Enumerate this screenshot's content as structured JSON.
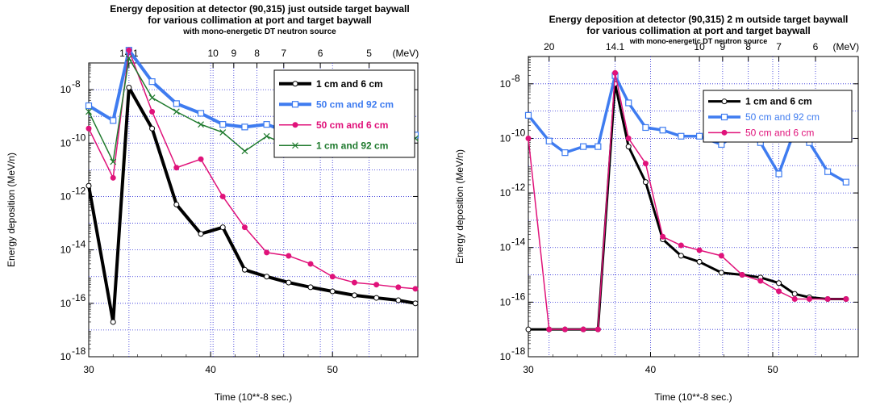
{
  "chart_data": [
    {
      "type": "line",
      "title": "Energy deposition at detector (90,315) just outside target baywall",
      "subtitle": "for various collimation at port and target baywall",
      "subtitle2": "with mono-energetic DT neutron source",
      "xlabel": "Time (10**-8 sec.)",
      "ylabel": "Energy deposition (MeV/n)",
      "xlim": [
        30,
        57
      ],
      "ylim_log10": [
        -18,
        -7
      ],
      "x_ticks": [
        "30",
        "40",
        "50"
      ],
      "x_tick_values": [
        30,
        40,
        50
      ],
      "y_ticks": [
        "-18",
        "-16",
        "-14",
        "-12",
        "-10",
        "-8"
      ],
      "y_tick_values": [
        -18,
        -16,
        -14,
        -12,
        -10,
        -8
      ],
      "top_axis_labels": [
        "14.1",
        "10",
        "9",
        "8",
        "7",
        "6",
        "5",
        "(MeV)"
      ],
      "top_axis_positions": [
        33.3,
        40.2,
        41.9,
        43.8,
        46.0,
        49.0,
        53.0,
        56.0
      ],
      "grid": true,
      "legend_position": "top-right",
      "series": [
        {
          "name": "1 cm and 6 cm",
          "color": "#000000",
          "width": 4,
          "marker": "circle",
          "x": [
            30,
            32,
            33.3,
            35.2,
            37.2,
            39.2,
            41.0,
            42.8,
            44.6,
            46.4,
            48.2,
            50.0,
            51.8,
            53.6,
            55.4,
            56.8
          ],
          "y": [
            2.5e-12,
            2e-17,
            1.2e-08,
            3.5e-10,
            5e-13,
            4e-14,
            7e-14,
            1.8e-15,
            1e-15,
            6e-16,
            4e-16,
            2.8e-16,
            2e-16,
            1.6e-16,
            1.3e-16,
            1e-16
          ]
        },
        {
          "name": "50 cm and 92 cm",
          "color": "#3f7cf0",
          "width": 4,
          "marker": "square",
          "x": [
            30,
            32,
            33.3,
            35.2,
            37.2,
            39.2,
            41.0,
            42.8,
            44.6,
            46.4,
            48.2,
            50.0,
            51.8,
            53.6,
            55.4,
            56.8
          ],
          "y": [
            2.5e-09,
            7e-10,
            3e-07,
            2e-08,
            3e-09,
            1.3e-09,
            5e-10,
            4e-10,
            5e-10,
            2.5e-10,
            2e-10,
            2.2e-10,
            3e-10,
            1.3e-10,
            2.5e-10,
            2e-10
          ]
        },
        {
          "name": "50 cm and 6 cm",
          "color": "#e0127a",
          "width": 1.5,
          "marker": "dot",
          "x": [
            30,
            32,
            33.3,
            35.2,
            37.2,
            39.2,
            41.0,
            42.8,
            44.6,
            46.4,
            48.2,
            50.0,
            51.8,
            53.6,
            55.4,
            56.8
          ],
          "y": [
            3.5e-10,
            5e-12,
            3e-07,
            1.5e-09,
            1.2e-11,
            2.5e-11,
            1e-12,
            7e-14,
            8e-15,
            6e-15,
            3e-15,
            1e-15,
            6e-16,
            5e-16,
            4e-16,
            3.5e-16
          ]
        },
        {
          "name": "1 cm and 92 cm",
          "color": "#1f7a2e",
          "width": 1.5,
          "marker": "x",
          "x": [
            30,
            32,
            33.3,
            35.2,
            37.2,
            39.2,
            41.0,
            42.8,
            44.6,
            46.4,
            48.2,
            50.0,
            51.8,
            53.6,
            55.4,
            56.8
          ],
          "y": [
            1.5e-09,
            2e-11,
            1.5e-07,
            5e-09,
            1.5e-09,
            5e-10,
            2.5e-10,
            5e-11,
            1.8e-10,
            8e-11,
            7e-11,
            1.3e-10,
            2e-10,
            1.8e-10,
            3e-10,
            1.5e-10
          ]
        }
      ]
    },
    {
      "type": "line",
      "title": "Energy deposition at detector (90,315) 2 m outside target baywall",
      "subtitle": "for various collimation at port and target baywall",
      "subtitle2": "with mono-energetic DT neutron source",
      "xlabel": "Time (10**-8 sec.)",
      "ylabel": "Energy deposition (MeV/n)",
      "xlim": [
        30,
        57
      ],
      "ylim_log10": [
        -18,
        -7
      ],
      "x_ticks": [
        "30",
        "40",
        "50"
      ],
      "x_tick_values": [
        30,
        40,
        50
      ],
      "y_ticks": [
        "-18",
        "-16",
        "-14",
        "-12",
        "-10",
        "-8"
      ],
      "y_tick_values": [
        -18,
        -16,
        -14,
        -12,
        -10,
        -8
      ],
      "top_axis_labels": [
        "20",
        "14.1",
        "10",
        "9",
        "8",
        "7",
        "6",
        "(MeV)"
      ],
      "top_axis_positions": [
        31.7,
        37.1,
        44.0,
        45.9,
        48.0,
        50.5,
        53.5,
        56.0
      ],
      "grid": true,
      "legend_position": "top-right",
      "series": [
        {
          "name": "1 cm and 6 cm",
          "color": "#000000",
          "width": 3,
          "marker": "circle",
          "x": [
            30,
            31.7,
            33.0,
            34.5,
            35.7,
            37.1,
            38.2,
            39.6,
            41.0,
            42.5,
            44.0,
            45.8,
            47.5,
            49.0,
            50.5,
            51.8,
            53.0,
            54.5,
            56.0
          ],
          "y": [
            1e-17,
            1e-17,
            1e-17,
            1e-17,
            1e-17,
            1e-08,
            5e-11,
            2.5e-12,
            2e-14,
            5e-15,
            3e-15,
            1.2e-15,
            1e-15,
            8e-16,
            5e-16,
            2e-16,
            1.5e-16,
            1.3e-16,
            1.3e-16
          ]
        },
        {
          "name": "50 cm and 92 cm",
          "color": "#3f7cf0",
          "width": 3.5,
          "marker": "square",
          "x": [
            30,
            31.7,
            33.0,
            34.5,
            35.7,
            37.1,
            38.2,
            39.6,
            41.0,
            42.5,
            44.0,
            45.8,
            47.5,
            49.0,
            50.5,
            51.8,
            53.0,
            54.5,
            56.0
          ],
          "y": [
            7e-10,
            8e-11,
            3e-11,
            5e-11,
            5e-11,
            2e-08,
            2e-09,
            2.5e-10,
            2e-10,
            1.2e-10,
            1.2e-10,
            6e-11,
            2e-10,
            7e-11,
            5e-12,
            2e-10,
            7e-11,
            6e-12,
            2.5e-12
          ]
        },
        {
          "name": "50 cm and 6 cm",
          "color": "#e0127a",
          "width": 1.5,
          "marker": "dot",
          "x": [
            30,
            31.7,
            33.0,
            34.5,
            35.7,
            37.1,
            38.2,
            39.6,
            41.0,
            42.5,
            44.0,
            45.8,
            47.5,
            49.0,
            50.5,
            51.8,
            53.0,
            54.5,
            56.0
          ],
          "y": [
            1e-10,
            1e-17,
            1e-17,
            1e-17,
            1e-17,
            2.5e-08,
            1e-10,
            1.2e-11,
            2.5e-14,
            1.2e-14,
            8e-15,
            5e-15,
            1e-15,
            6e-16,
            2.5e-16,
            1.3e-16,
            1.3e-16,
            1.3e-16,
            1.3e-16
          ]
        }
      ]
    }
  ]
}
